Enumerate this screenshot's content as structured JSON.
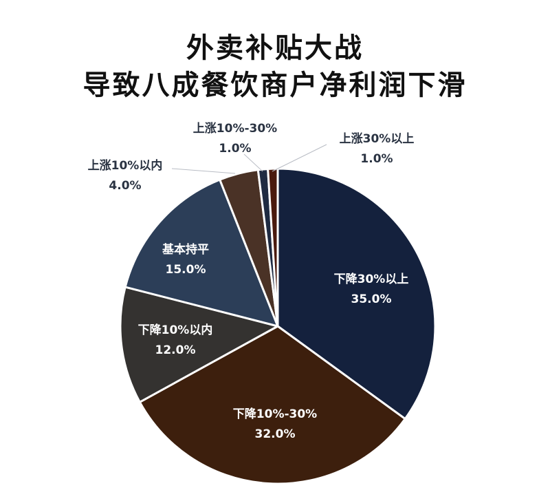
{
  "title": {
    "line1": "外卖补贴大战",
    "line2": "导致八成餐饮商户净利润下滑"
  },
  "chart_data": {
    "type": "pie",
    "title": "外卖补贴大战 导致八成餐饮商户净利润下滑",
    "start_angle": "12 o'clock",
    "direction": "clockwise",
    "categories": [
      "下降30%以上",
      "下降10%-30%",
      "下降10%以内",
      "基本持平",
      "上涨10%以内",
      "上涨10%-30%",
      "上涨30%以上"
    ],
    "values": [
      35.0,
      32.0,
      12.0,
      15.0,
      4.0,
      1.0,
      1.0
    ],
    "value_labels": [
      "35.0%",
      "32.0%",
      "12.0%",
      "15.0%",
      "4.0%",
      "1.0%",
      "1.0%"
    ],
    "colors": [
      "#14213d",
      "#3d1f0d",
      "#343230",
      "#2c3e58",
      "#4a3226",
      "#1f2b42",
      "#4a1a0e"
    ],
    "legend": "none (data labels on slices)"
  },
  "labels": [
    {
      "name": "下降30%以上",
      "value": "35.0%"
    },
    {
      "name": "下降10%-30%",
      "value": "32.0%"
    },
    {
      "name": "下降10%以内",
      "value": "12.0%"
    },
    {
      "name": "基本持平",
      "value": "15.0%"
    },
    {
      "name": "上涨10%以内",
      "value": "4.0%"
    },
    {
      "name": "上涨10%-30%",
      "value": "1.0%"
    },
    {
      "name": "上涨30%以上",
      "value": "1.0%"
    }
  ]
}
